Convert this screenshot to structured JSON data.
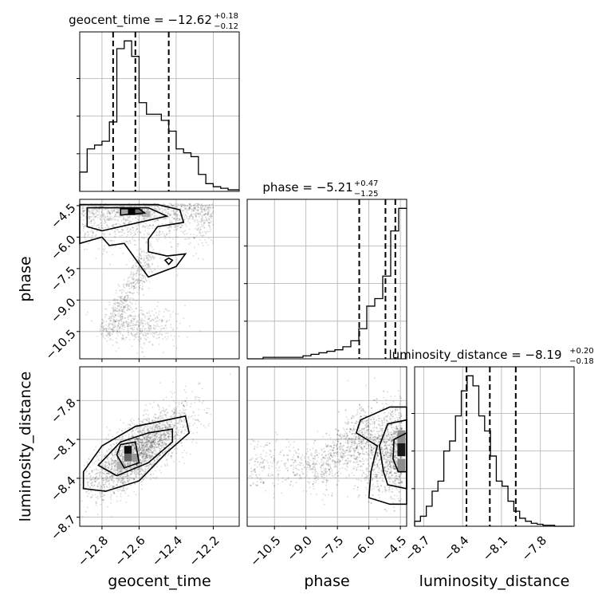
{
  "chart_data": {
    "type": "corner",
    "parameters": [
      "geocent_time",
      "phase",
      "luminosity_distance"
    ],
    "titles": [
      {
        "param": "geocent_time",
        "text": "geocent_time = −12.62",
        "plus": "+0.18",
        "minus": "−0.12"
      },
      {
        "param": "phase",
        "text": "phase = −5.21",
        "plus": "+0.47",
        "minus": "−1.25"
      },
      {
        "param": "luminosity_distance",
        "text": "luminosity_distance = −8.19",
        "plus": "+0.20",
        "minus": "−0.18"
      }
    ],
    "axes": {
      "geocent_time": {
        "range": [
          -12.92,
          -12.06
        ],
        "ticks": [
          -12.8,
          -12.6,
          -12.4,
          -12.2
        ],
        "tick_labels": [
          "−12.8",
          "−12.6",
          "−12.4",
          "−12.2"
        ]
      },
      "phase": {
        "range": [
          -11.8,
          -4.2
        ],
        "ticks": [
          -10.5,
          -9.0,
          -7.5,
          -6.0,
          -4.5
        ],
        "tick_labels": [
          "−10.5",
          "−9.0",
          "−7.5",
          "−6.0",
          "−4.5"
        ]
      },
      "luminosity_distance": {
        "range": [
          -8.77,
          -7.54
        ],
        "ticks": [
          -8.7,
          -8.4,
          -8.1,
          -7.8
        ],
        "tick_labels": [
          "−8.7",
          "−8.4",
          "−8.1",
          "−7.8"
        ]
      }
    },
    "axis_labels": {
      "x": [
        "geocent_time",
        "phase",
        "luminosity_distance"
      ],
      "y": [
        "phase",
        "luminosity_distance"
      ]
    },
    "quantile_lines": {
      "geocent_time": [
        -12.74,
        -12.62,
        -12.44
      ],
      "phase": [
        -6.46,
        -5.21,
        -4.74
      ],
      "luminosity_distance": [
        -8.37,
        -8.19,
        -7.99
      ]
    },
    "histograms": [
      {
        "param": "geocent_time",
        "edges_start": -12.92,
        "bin_width": 0.04,
        "counts": [
          25,
          55,
          60,
          65,
          90,
          185,
          195,
          175,
          115,
          100,
          100,
          92,
          78,
          55,
          50,
          45,
          22,
          10,
          6,
          4,
          2,
          2
        ]
      },
      {
        "param": "phase",
        "edges_start": -11.8,
        "bin_width": 0.38,
        "counts": [
          0,
          0,
          1,
          1,
          1,
          1,
          1,
          2,
          3,
          4,
          5,
          6,
          8,
          12,
          20,
          35,
          40,
          55,
          85,
          100
        ]
      },
      {
        "param": "luminosity_distance",
        "edges_start": -8.77,
        "bin_width": 0.045,
        "counts": [
          5,
          10,
          20,
          35,
          45,
          75,
          85,
          110,
          135,
          150,
          140,
          110,
          95,
          70,
          45,
          40,
          25,
          15,
          8,
          5,
          3,
          2,
          1,
          1,
          0,
          0,
          0
        ]
      }
    ],
    "contours_2d": [
      {
        "x": "geocent_time",
        "y": "phase",
        "cells": [
          [
            -12.64,
            -4.8,
            1.0
          ],
          [
            -12.6,
            -4.8,
            0.55
          ],
          [
            -12.68,
            -4.8,
            0.35
          ],
          [
            -12.56,
            -4.9,
            0.3
          ]
        ]
      },
      {
        "x": "geocent_time",
        "y": "luminosity_distance",
        "cells": [
          [
            -12.66,
            -8.18,
            0.95
          ],
          [
            -12.66,
            -8.24,
            0.6
          ],
          [
            -12.62,
            -8.24,
            0.4
          ],
          [
            -12.7,
            -8.3,
            0.3
          ]
        ]
      },
      {
        "x": "phase",
        "y": "luminosity_distance",
        "cells": [
          [
            -4.45,
            -8.18,
            0.9
          ],
          [
            -4.45,
            -8.08,
            0.45
          ],
          [
            -4.45,
            -8.3,
            0.45
          ]
        ]
      }
    ],
    "grid": true,
    "legend": "none"
  }
}
